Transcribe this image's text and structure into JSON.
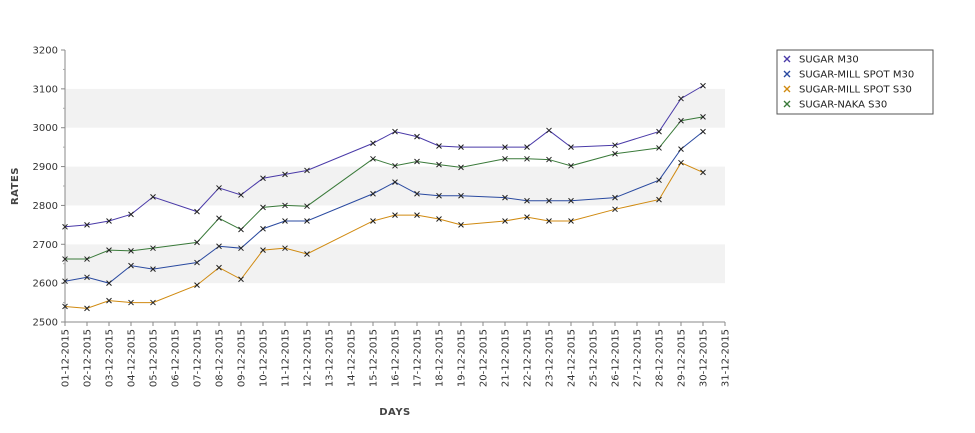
{
  "chart_data": {
    "type": "line",
    "title": "",
    "xlabel": "DAYS",
    "ylabel": "RATES",
    "ylim": [
      2500,
      3200
    ],
    "yticks": [
      2500,
      2600,
      2700,
      2800,
      2900,
      3000,
      3100,
      3200
    ],
    "categories": [
      "01-12-2015",
      "02-12-2015",
      "03-12-2015",
      "04-12-2015",
      "05-12-2015",
      "06-12-2015",
      "07-12-2015",
      "08-12-2015",
      "09-12-2015",
      "10-12-2015",
      "11-12-2015",
      "12-12-2015",
      "13-12-2015",
      "14-12-2015",
      "15-12-2015",
      "16-12-2015",
      "17-12-2015",
      "18-12-2015",
      "19-12-2015",
      "20-12-2015",
      "21-12-2015",
      "22-12-2015",
      "23-12-2015",
      "24-12-2015",
      "25-12-2015",
      "26-12-2015",
      "27-12-2015",
      "28-12-2015",
      "29-12-2015",
      "30-12-2015",
      "31-12-2015"
    ],
    "legend_position": "top-right",
    "grid": "alternating horizontal bands",
    "series": [
      {
        "name": "SUGAR M30",
        "color": "#4a3aa8",
        "points": [
          [
            "01-12-2015",
            2745
          ],
          [
            "02-12-2015",
            2750
          ],
          [
            "03-12-2015",
            2760
          ],
          [
            "04-12-2015",
            2777
          ],
          [
            "05-12-2015",
            2822
          ],
          [
            "07-12-2015",
            2784
          ],
          [
            "08-12-2015",
            2845
          ],
          [
            "09-12-2015",
            2827
          ],
          [
            "10-12-2015",
            2870
          ],
          [
            "11-12-2015",
            2880
          ],
          [
            "12-12-2015",
            2890
          ],
          [
            "15-12-2015",
            2960
          ],
          [
            "16-12-2015",
            2990
          ],
          [
            "17-12-2015",
            2977
          ],
          [
            "18-12-2015",
            2953
          ],
          [
            "19-12-2015",
            2950
          ],
          [
            "21-12-2015",
            2950
          ],
          [
            "22-12-2015",
            2950
          ],
          [
            "23-12-2015",
            2993
          ],
          [
            "24-12-2015",
            2950
          ],
          [
            "26-12-2015",
            2955
          ],
          [
            "28-12-2015",
            2990
          ],
          [
            "29-12-2015",
            3075
          ],
          [
            "30-12-2015",
            3108
          ]
        ]
      },
      {
        "name": "SUGAR-MILL SPOT M30",
        "color": "#2a4aa0",
        "points": [
          [
            "01-12-2015",
            2605
          ],
          [
            "02-12-2015",
            2615
          ],
          [
            "03-12-2015",
            2600
          ],
          [
            "04-12-2015",
            2645
          ],
          [
            "05-12-2015",
            2636
          ],
          [
            "07-12-2015",
            2653
          ],
          [
            "08-12-2015",
            2695
          ],
          [
            "09-12-2015",
            2690
          ],
          [
            "10-12-2015",
            2740
          ],
          [
            "11-12-2015",
            2760
          ],
          [
            "12-12-2015",
            2760
          ],
          [
            "15-12-2015",
            2830
          ],
          [
            "16-12-2015",
            2860
          ],
          [
            "17-12-2015",
            2830
          ],
          [
            "18-12-2015",
            2825
          ],
          [
            "19-12-2015",
            2825
          ],
          [
            "21-12-2015",
            2820
          ],
          [
            "22-12-2015",
            2812
          ],
          [
            "23-12-2015",
            2812
          ],
          [
            "24-12-2015",
            2812
          ],
          [
            "26-12-2015",
            2820
          ],
          [
            "28-12-2015",
            2865
          ],
          [
            "29-12-2015",
            2945
          ],
          [
            "30-12-2015",
            2990
          ]
        ]
      },
      {
        "name": "SUGAR-MILL SPOT S30",
        "color": "#d08a10",
        "points": [
          [
            "01-12-2015",
            2540
          ],
          [
            "02-12-2015",
            2535
          ],
          [
            "03-12-2015",
            2555
          ],
          [
            "04-12-2015",
            2550
          ],
          [
            "05-12-2015",
            2550
          ],
          [
            "07-12-2015",
            2595
          ],
          [
            "08-12-2015",
            2640
          ],
          [
            "09-12-2015",
            2610
          ],
          [
            "10-12-2015",
            2685
          ],
          [
            "11-12-2015",
            2690
          ],
          [
            "12-12-2015",
            2675
          ],
          [
            "15-12-2015",
            2760
          ],
          [
            "16-12-2015",
            2775
          ],
          [
            "17-12-2015",
            2775
          ],
          [
            "18-12-2015",
            2765
          ],
          [
            "19-12-2015",
            2750
          ],
          [
            "21-12-2015",
            2760
          ],
          [
            "22-12-2015",
            2770
          ],
          [
            "23-12-2015",
            2760
          ],
          [
            "24-12-2015",
            2760
          ],
          [
            "26-12-2015",
            2790
          ],
          [
            "28-12-2015",
            2815
          ],
          [
            "29-12-2015",
            2910
          ],
          [
            "30-12-2015",
            2885
          ]
        ]
      },
      {
        "name": "SUGAR-NAKA S30",
        "color": "#3a7a3a",
        "points": [
          [
            "01-12-2015",
            2662
          ],
          [
            "02-12-2015",
            2662
          ],
          [
            "03-12-2015",
            2685
          ],
          [
            "04-12-2015",
            2683
          ],
          [
            "05-12-2015",
            2690
          ],
          [
            "07-12-2015",
            2705
          ],
          [
            "08-12-2015",
            2767
          ],
          [
            "09-12-2015",
            2738
          ],
          [
            "10-12-2015",
            2795
          ],
          [
            "11-12-2015",
            2800
          ],
          [
            "12-12-2015",
            2798
          ],
          [
            "15-12-2015",
            2920
          ],
          [
            "16-12-2015",
            2902
          ],
          [
            "17-12-2015",
            2913
          ],
          [
            "18-12-2015",
            2905
          ],
          [
            "19-12-2015",
            2898
          ],
          [
            "21-12-2015",
            2920
          ],
          [
            "22-12-2015",
            2920
          ],
          [
            "23-12-2015",
            2918
          ],
          [
            "24-12-2015",
            2902
          ],
          [
            "26-12-2015",
            2933
          ],
          [
            "28-12-2015",
            2948
          ],
          [
            "29-12-2015",
            3018
          ],
          [
            "30-12-2015",
            3028
          ]
        ]
      }
    ]
  }
}
